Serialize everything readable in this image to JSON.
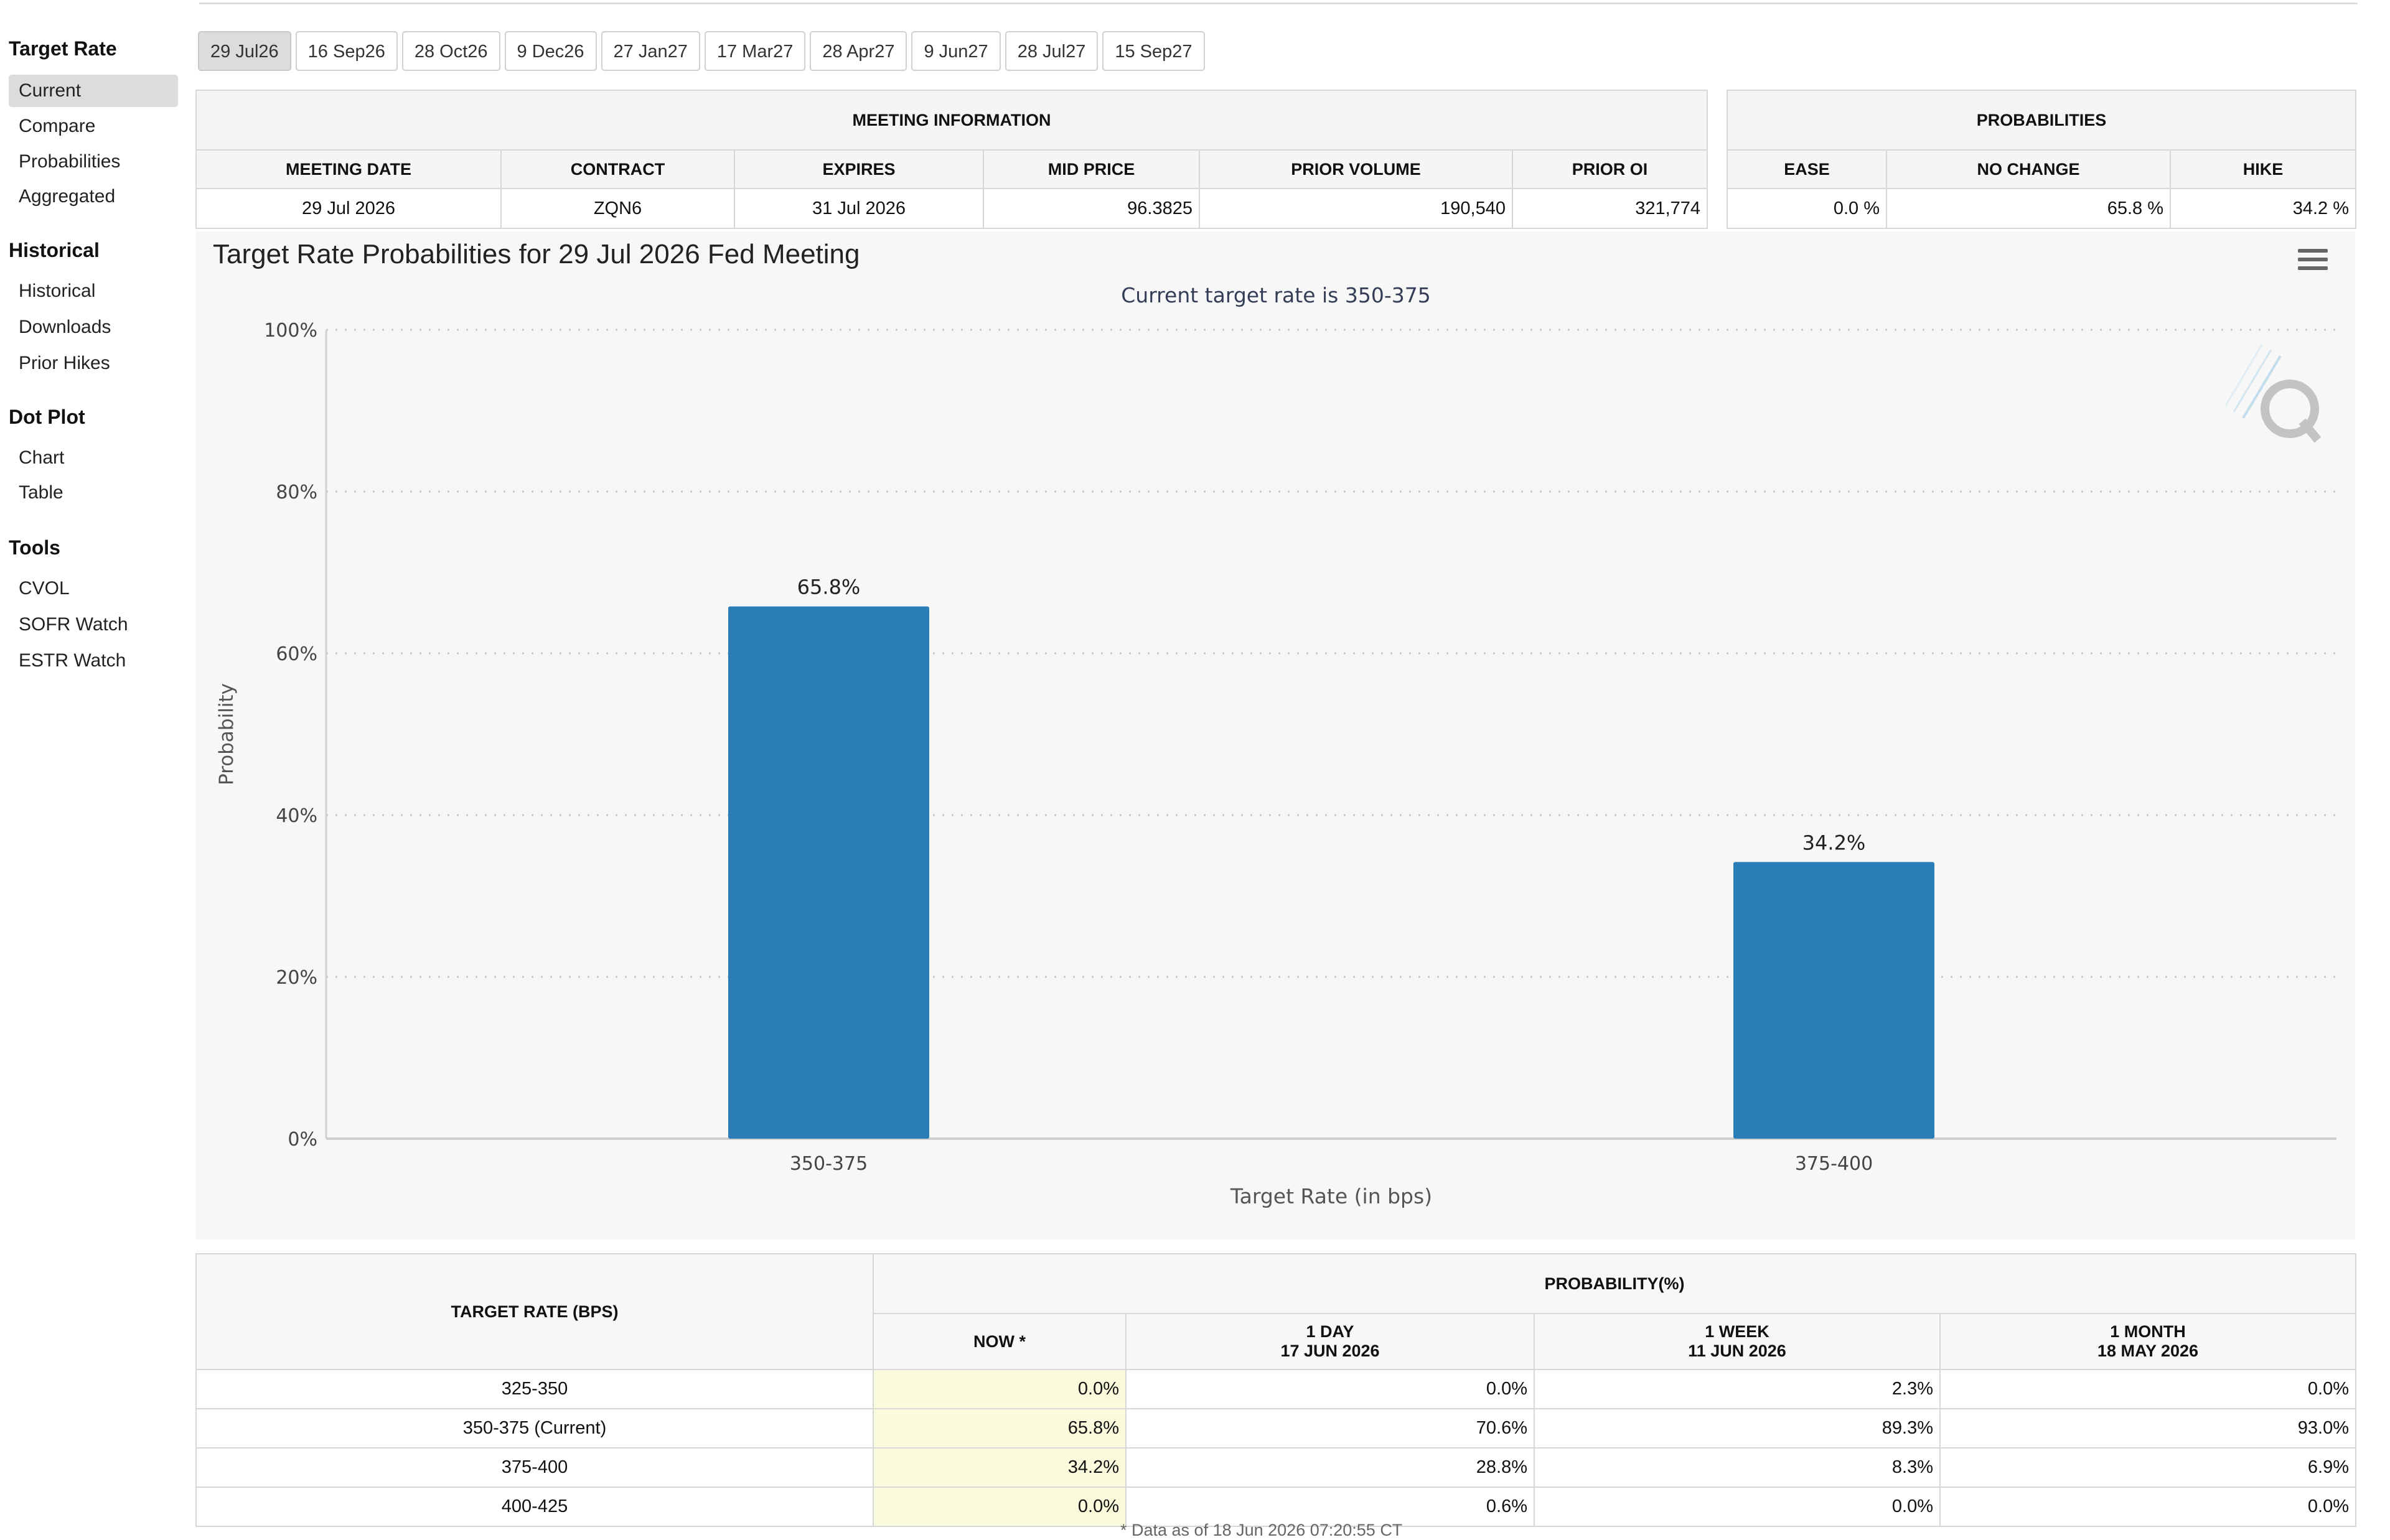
{
  "sidebar": {
    "sections": [
      {
        "title": "Target Rate",
        "items": [
          "Current",
          "Compare",
          "Probabilities",
          "Aggregated"
        ]
      },
      {
        "title": "Historical",
        "items": [
          "Historical",
          "Downloads",
          "Prior Hikes"
        ]
      },
      {
        "title": "Dot Plot",
        "items": [
          "Chart",
          "Table"
        ]
      },
      {
        "title": "Tools",
        "items": [
          "CVOL",
          "SOFR Watch",
          "ESTR Watch"
        ]
      }
    ]
  },
  "tabs": [
    "29 Jul26",
    "16 Sep26",
    "28 Oct26",
    "9 Dec26",
    "27 Jan27",
    "17 Mar27",
    "28 Apr27",
    "9 Jun27",
    "28 Jul27",
    "15 Sep27"
  ],
  "meeting_info": {
    "group_title": "MEETING INFORMATION",
    "headers": [
      "MEETING DATE",
      "CONTRACT",
      "EXPIRES",
      "MID PRICE",
      "PRIOR VOLUME",
      "PRIOR OI"
    ],
    "values": [
      "29 Jul 2026",
      "ZQN6",
      "31 Jul 2026",
      "96.3825",
      "190,540",
      "321,774"
    ]
  },
  "probabilities": {
    "group_title": "PROBABILITIES",
    "headers": [
      "EASE",
      "NO CHANGE",
      "HIKE"
    ],
    "values": [
      "0.0 %",
      "65.8 %",
      "34.2 %"
    ]
  },
  "chart_data": {
    "type": "bar",
    "title": "Target Rate Probabilities for 29 Jul 2026 Fed Meeting",
    "subtitle": "Current target rate is 350-375",
    "categories": [
      "350-375",
      "375-400"
    ],
    "values": [
      65.8,
      34.2
    ],
    "data_labels": [
      "65.8%",
      "34.2%"
    ],
    "xlabel": "Target Rate (in bps)",
    "ylabel": "Probability",
    "ylim": [
      0,
      100
    ],
    "yticks": [
      "0%",
      "20%",
      "40%",
      "60%",
      "80%",
      "100%"
    ],
    "grid": true,
    "bar_color": "#2a7eb8"
  },
  "prob_table": {
    "rate_header": "TARGET RATE (BPS)",
    "group_header": "PROBABILITY(%)",
    "columns": [
      {
        "line1": "NOW *",
        "line2": ""
      },
      {
        "line1": "1 DAY",
        "line2": "17 JUN 2026"
      },
      {
        "line1": "1 WEEK",
        "line2": "11 JUN 2026"
      },
      {
        "line1": "1 MONTH",
        "line2": "18 MAY 2026"
      }
    ],
    "rows": [
      {
        "rate": "325-350",
        "values": [
          "0.0%",
          "0.0%",
          "2.3%",
          "0.0%"
        ]
      },
      {
        "rate": "350-375 (Current)",
        "values": [
          "65.8%",
          "70.6%",
          "89.3%",
          "93.0%"
        ]
      },
      {
        "rate": "375-400",
        "values": [
          "34.2%",
          "28.8%",
          "8.3%",
          "6.9%"
        ]
      },
      {
        "rate": "400-425",
        "values": [
          "0.0%",
          "0.6%",
          "0.0%",
          "0.0%"
        ]
      }
    ],
    "footnote": "* Data as of 18 Jun 2026 07:20:55 CT"
  }
}
